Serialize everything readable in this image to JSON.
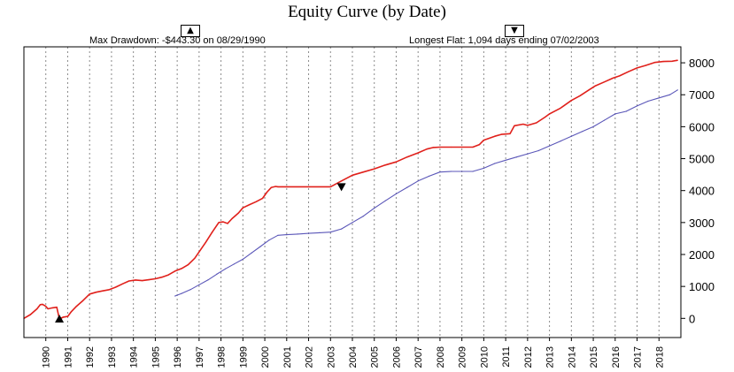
{
  "chart_data": {
    "type": "line",
    "title": "Equity Curve (by Date)",
    "xlabel": "",
    "ylabel": "",
    "x_tick_labels": [
      "1990",
      "1991",
      "1992",
      "1993",
      "1994",
      "1995",
      "1996",
      "1997",
      "1998",
      "1999",
      "2000",
      "2001",
      "2002",
      "2003",
      "2004",
      "2005",
      "2006",
      "2007",
      "2008",
      "2009",
      "2010",
      "2011",
      "2012",
      "2013",
      "2014",
      "2015",
      "2016",
      "2017",
      "2018"
    ],
    "y_tick_labels": [
      "0",
      "1000",
      "2000",
      "3000",
      "4000",
      "5000",
      "6000",
      "7000",
      "8000"
    ],
    "xlim": [
      1989.0,
      2019.0
    ],
    "ylim": [
      -600,
      8500
    ],
    "grid": "vertical-dotted",
    "y_axis_side": "right",
    "series": [
      {
        "color": "#e0201b",
        "x": [
          1989.0,
          1989.3,
          1989.6,
          1989.75,
          1989.85,
          1990.0,
          1990.1,
          1990.3,
          1990.5,
          1990.62,
          1990.8,
          1991.0,
          1991.15,
          1991.4,
          1991.7,
          1992.0,
          1992.3,
          1992.6,
          1992.9,
          1993.2,
          1993.5,
          1993.8,
          1994.1,
          1994.4,
          1994.7,
          1995.0,
          1995.3,
          1995.6,
          1995.9,
          1996.2,
          1996.5,
          1996.8,
          1997.0,
          1997.3,
          1997.6,
          1997.9,
          1998.1,
          1998.3,
          1998.5,
          1998.8,
          1999.0,
          1999.3,
          1999.6,
          1999.9,
          2000.1,
          2000.3,
          2000.5,
          2000.6,
          2000.8,
          2001.0,
          2002.0,
          2003.0,
          2003.5,
          2004.0,
          2004.5,
          2005.0,
          2005.5,
          2006.0,
          2006.5,
          2007.0,
          2007.4,
          2007.7,
          2008.0,
          2008.5,
          2009.0,
          2009.5,
          2009.8,
          2010.0,
          2010.5,
          2010.8,
          2011.2,
          2011.4,
          2011.8,
          2012.0,
          2012.4,
          2012.8,
          2013.0,
          2013.5,
          2014.0,
          2014.4,
          2014.8,
          2015.1,
          2015.5,
          2015.9,
          2016.2,
          2016.6,
          2017.0,
          2017.4,
          2017.8,
          2018.2,
          2018.6,
          2018.85
        ],
        "values": [
          0,
          120,
          300,
          430,
          440,
          380,
          300,
          330,
          350,
          -20,
          40,
          60,
          200,
          380,
          560,
          760,
          820,
          860,
          900,
          980,
          1080,
          1170,
          1200,
          1180,
          1210,
          1240,
          1290,
          1360,
          1480,
          1560,
          1680,
          1880,
          2080,
          2380,
          2700,
          3000,
          3020,
          2970,
          3120,
          3300,
          3460,
          3560,
          3650,
          3760,
          3950,
          4100,
          4130,
          4120,
          4120,
          4120,
          4120,
          4120,
          4300,
          4480,
          4580,
          4680,
          4800,
          4900,
          5050,
          5180,
          5300,
          5350,
          5360,
          5360,
          5360,
          5360,
          5440,
          5580,
          5700,
          5760,
          5780,
          6030,
          6080,
          6040,
          6120,
          6300,
          6400,
          6580,
          6820,
          6970,
          7150,
          7280,
          7400,
          7520,
          7590,
          7720,
          7840,
          7920,
          8010,
          8040,
          8050,
          8080
        ]
      },
      {
        "color": "#5a56b8",
        "x": [
          1995.9,
          1996.2,
          1996.6,
          1997.0,
          1997.4,
          1997.8,
          1998.2,
          1998.6,
          1999.0,
          1999.4,
          1999.8,
          2000.2,
          2000.6,
          2001.0,
          2001.5,
          2002.0,
          2002.5,
          2003.0,
          2003.5,
          2004.0,
          2004.5,
          2005.0,
          2005.5,
          2006.0,
          2006.5,
          2007.0,
          2007.5,
          2008.0,
          2008.5,
          2009.0,
          2009.5,
          2010.0,
          2010.5,
          2011.0,
          2011.5,
          2012.0,
          2012.5,
          2013.0,
          2013.5,
          2014.0,
          2014.5,
          2015.0,
          2015.5,
          2016.0,
          2016.5,
          2017.0,
          2017.5,
          2018.0,
          2018.5,
          2018.85
        ],
        "values": [
          700,
          780,
          900,
          1050,
          1200,
          1380,
          1550,
          1700,
          1850,
          2050,
          2250,
          2450,
          2600,
          2620,
          2640,
          2660,
          2680,
          2700,
          2800,
          3000,
          3200,
          3450,
          3680,
          3900,
          4100,
          4300,
          4450,
          4580,
          4600,
          4600,
          4600,
          4700,
          4850,
          4950,
          5050,
          5150,
          5250,
          5400,
          5550,
          5700,
          5850,
          6000,
          6200,
          6400,
          6480,
          6650,
          6800,
          6900,
          7000,
          7150
        ]
      }
    ],
    "annotations": {
      "max_drawdown": "Max Drawdown: -$443.30 on 08/29/1990",
      "drawdown_marker": "▲",
      "longest_flat": "Longest Flat: 1,094 days ending 07/02/2003",
      "flat_marker": "▼"
    },
    "marker_points": [
      {
        "x": 1990.62,
        "y": -20,
        "shape": "up-triangle"
      },
      {
        "x": 2003.5,
        "y": 4120,
        "shape": "down-triangle"
      }
    ]
  }
}
